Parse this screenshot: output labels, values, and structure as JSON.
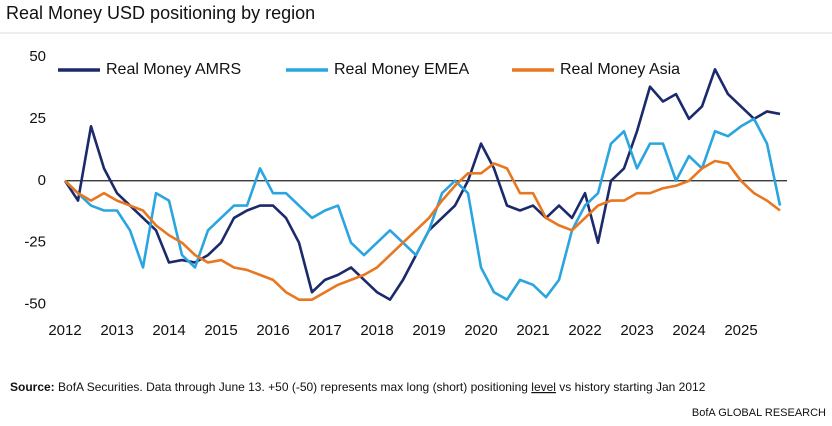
{
  "chart_data": {
    "type": "line",
    "title": "Real Money USD positioning by region",
    "x": [
      2012,
      2012.25,
      2012.5,
      2012.75,
      2013,
      2013.25,
      2013.5,
      2013.75,
      2014,
      2014.25,
      2014.5,
      2014.75,
      2015,
      2015.25,
      2015.5,
      2015.75,
      2016,
      2016.25,
      2016.5,
      2016.75,
      2017,
      2017.25,
      2017.5,
      2017.75,
      2018,
      2018.25,
      2018.5,
      2018.75,
      2019,
      2019.25,
      2019.5,
      2019.75,
      2020,
      2020.25,
      2020.5,
      2020.75,
      2021,
      2021.25,
      2021.5,
      2021.75,
      2022,
      2022.25,
      2022.5,
      2022.75,
      2023,
      2023.25,
      2023.5,
      2023.75,
      2024,
      2024.25,
      2024.5,
      2024.75,
      2025,
      2025.25,
      2025.5,
      2025.75
    ],
    "series": [
      {
        "name": "Real Money AMRS",
        "color": "#1b2a6b",
        "values": [
          0,
          -8,
          22,
          5,
          -5,
          -10,
          -15,
          -20,
          -33,
          -32,
          -33,
          -30,
          -25,
          -15,
          -12,
          -10,
          -10,
          -15,
          -25,
          -45,
          -40,
          -38,
          -35,
          -40,
          -45,
          -48,
          -40,
          -30,
          -20,
          -15,
          -10,
          0,
          15,
          5,
          -10,
          -12,
          -10,
          -15,
          -10,
          -15,
          -5,
          -25,
          0,
          5,
          20,
          38,
          32,
          35,
          25,
          30,
          45,
          35,
          30,
          25,
          28,
          27
        ]
      },
      {
        "name": "Real Money EMEA",
        "color": "#2aa5e0",
        "values": [
          0,
          -5,
          -10,
          -12,
          -12,
          -20,
          -35,
          -5,
          -8,
          -30,
          -35,
          -20,
          -15,
          -10,
          -10,
          5,
          -5,
          -5,
          -10,
          -15,
          -12,
          -10,
          -25,
          -30,
          -25,
          -20,
          -25,
          -30,
          -20,
          -5,
          0,
          -5,
          -35,
          -45,
          -48,
          -40,
          -42,
          -47,
          -40,
          -20,
          -10,
          -5,
          15,
          20,
          5,
          15,
          15,
          0,
          10,
          5,
          20,
          18,
          22,
          25,
          15,
          -10
        ]
      },
      {
        "name": "Real Money Asia",
        "color": "#e8771f",
        "values": [
          0,
          -5,
          -8,
          -5,
          -8,
          -10,
          -12,
          -18,
          -22,
          -25,
          -30,
          -33,
          -32,
          -35,
          -36,
          -38,
          -40,
          -45,
          -48,
          -48,
          -45,
          -42,
          -40,
          -38,
          -35,
          -30,
          -25,
          -20,
          -15,
          -8,
          -2,
          3,
          3,
          7,
          5,
          -5,
          -5,
          -15,
          -18,
          -20,
          -15,
          -10,
          -8,
          -8,
          -5,
          -5,
          -3,
          -2,
          0,
          5,
          8,
          7,
          0,
          -5,
          -8,
          -12
        ]
      }
    ],
    "xlim": [
      2012,
      2026
    ],
    "xticks": [
      2012,
      2013,
      2014,
      2015,
      2016,
      2017,
      2018,
      2019,
      2020,
      2021,
      2022,
      2023,
      2024,
      2025
    ],
    "ylim": [
      -55,
      52
    ],
    "yticks": [
      -50,
      -25,
      0,
      25,
      50
    ],
    "grid": false,
    "legend": "top",
    "source_label": "Source:",
    "source_before": " BofA Securities. Data through June 13. +50 (-50) represents max long (short) positioning ",
    "source_underlined": "level",
    "source_after": " vs history starting Jan 2012",
    "credit": "BofA GLOBAL RESEARCH"
  }
}
